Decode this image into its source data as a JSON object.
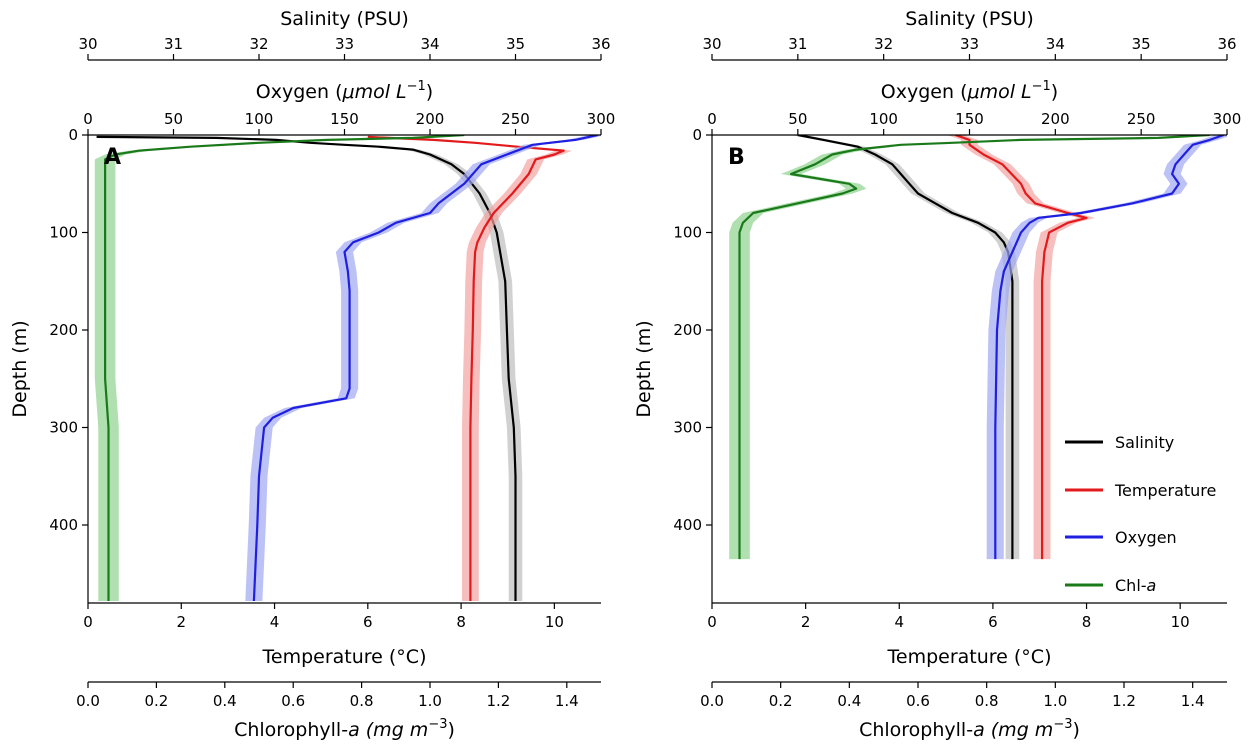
{
  "labels": {
    "salinity": "Salinity (PSU)",
    "oxygen": "Oxygen (",
    "oxygen_unit": "μmol L",
    "oxygen_exp": "−1",
    "depth": "Depth (m)",
    "temperature": "Temperature (°C)",
    "chl": "Chlorophyll-",
    "chl_a": "a",
    "chl_unit": " (mg m",
    "chl_exp": "−3"
  },
  "axes": {
    "salinity_ticks": [
      "30",
      "31",
      "32",
      "33",
      "34",
      "35",
      "36"
    ],
    "oxygen_ticks": [
      "0",
      "50",
      "100",
      "150",
      "200",
      "250",
      "300"
    ],
    "depth_ticks": [
      "0",
      "100",
      "200",
      "300",
      "400"
    ],
    "temperature_ticks": [
      "0",
      "2",
      "4",
      "6",
      "8",
      "10"
    ],
    "chl_ticks": [
      "0.0",
      "0.2",
      "0.4",
      "0.6",
      "0.8",
      "1.0",
      "1.2",
      "1.4"
    ]
  },
  "legend": [
    {
      "label": "Salinity",
      "color": "#000000"
    },
    {
      "label": "Temperature",
      "color": "#e31a1c"
    },
    {
      "label": "Oxygen",
      "color": "#1f1fe0"
    },
    {
      "label": "Chl-",
      "italic": "a",
      "color": "#1a7a1a"
    }
  ],
  "colors": {
    "salinity": "#000000",
    "temperature": "#e31a1c",
    "oxygen": "#1f1fe0",
    "chl": "#1a7a1a",
    "salinity_band": "#bdbdbd",
    "temperature_band": "#f4a3a3",
    "oxygen_band": "#9fa8f2",
    "chl_band": "#8fd18f"
  },
  "chart_data": [
    {
      "type": "line",
      "panel": "A",
      "y_axis": {
        "label": "Depth (m)",
        "range": [
          480,
          0
        ],
        "inverted": true
      },
      "x_axes": {
        "salinity": [
          30,
          36
        ],
        "oxygen": [
          0,
          300
        ],
        "temperature": [
          0,
          11
        ],
        "chlorophyll": [
          0.0,
          1.5
        ]
      },
      "series": [
        {
          "name": "Salinity",
          "axis": "salinity",
          "depth": [
            2,
            3,
            5,
            8,
            10,
            12,
            15,
            20,
            30,
            40,
            60,
            80,
            100,
            150,
            200,
            250,
            300,
            350,
            400,
            478
          ],
          "values": [
            30.1,
            31.5,
            32.2,
            32.6,
            33.0,
            33.4,
            33.8,
            34.0,
            34.25,
            34.4,
            34.58,
            34.7,
            34.78,
            34.88,
            34.9,
            34.92,
            34.98,
            35.0,
            35.0,
            35.0
          ]
        },
        {
          "name": "Temperature",
          "axis": "temperature",
          "depth": [
            2,
            5,
            8,
            12,
            16,
            20,
            25,
            40,
            60,
            80,
            95,
            110,
            120,
            150,
            200,
            250,
            300,
            350,
            400,
            478
          ],
          "values": [
            6.0,
            7.4,
            8.3,
            9.2,
            10.2,
            10.0,
            9.6,
            9.45,
            9.1,
            8.7,
            8.5,
            8.35,
            8.3,
            8.27,
            8.25,
            8.22,
            8.2,
            8.2,
            8.2,
            8.2
          ]
        },
        {
          "name": "Oxygen",
          "axis": "oxygen",
          "depth": [
            0,
            5,
            10,
            20,
            30,
            50,
            70,
            80,
            90,
            100,
            110,
            120,
            140,
            160,
            200,
            260,
            270,
            280,
            290,
            300,
            350,
            400,
            478
          ],
          "values": [
            298,
            285,
            260,
            245,
            230,
            220,
            205,
            200,
            180,
            170,
            155,
            150,
            152,
            153,
            153,
            153,
            151,
            120,
            108,
            103,
            100,
            99,
            97
          ]
        },
        {
          "name": "Chl-a",
          "axis": "chlorophyll",
          "depth": [
            0,
            3,
            5,
            8,
            12,
            16,
            20,
            25,
            30,
            50,
            100,
            150,
            200,
            250,
            300,
            350,
            400,
            478
          ],
          "values": [
            1.1,
            0.95,
            0.7,
            0.5,
            0.3,
            0.15,
            0.08,
            0.05,
            0.05,
            0.05,
            0.05,
            0.05,
            0.05,
            0.05,
            0.06,
            0.06,
            0.06,
            0.06
          ]
        }
      ]
    },
    {
      "type": "line",
      "panel": "B",
      "y_axis": {
        "label": "Depth (m)",
        "range": [
          480,
          0
        ],
        "inverted": true
      },
      "x_axes": {
        "salinity": [
          30,
          36
        ],
        "oxygen": [
          0,
          300
        ],
        "temperature": [
          0,
          11
        ],
        "chlorophyll": [
          0.0,
          1.5
        ]
      },
      "series": [
        {
          "name": "Salinity",
          "axis": "salinity",
          "depth": [
            0,
            5,
            12,
            20,
            30,
            40,
            50,
            60,
            70,
            80,
            90,
            100,
            110,
            120,
            150,
            200,
            300,
            400,
            435
          ],
          "values": [
            31.0,
            31.3,
            31.7,
            31.9,
            32.1,
            32.2,
            32.3,
            32.4,
            32.6,
            32.8,
            33.1,
            33.3,
            33.4,
            33.45,
            33.5,
            33.5,
            33.5,
            33.5,
            33.5
          ]
        },
        {
          "name": "Temperature",
          "axis": "temperature",
          "depth": [
            0,
            5,
            10,
            20,
            30,
            40,
            50,
            60,
            70,
            80,
            85,
            90,
            100,
            110,
            120,
            150,
            200,
            300,
            400,
            435
          ],
          "values": [
            5.2,
            5.5,
            5.5,
            5.8,
            6.2,
            6.4,
            6.6,
            6.7,
            6.9,
            7.6,
            8.0,
            7.6,
            7.2,
            7.15,
            7.1,
            7.05,
            7.05,
            7.05,
            7.05,
            7.05
          ]
        },
        {
          "name": "Oxygen",
          "axis": "oxygen",
          "depth": [
            0,
            5,
            10,
            20,
            30,
            40,
            50,
            60,
            70,
            80,
            85,
            90,
            100,
            120,
            140,
            160,
            200,
            300,
            400,
            435
          ],
          "values": [
            298,
            290,
            280,
            275,
            270,
            268,
            272,
            268,
            245,
            215,
            190,
            185,
            180,
            175,
            170,
            168,
            166,
            165,
            165,
            165
          ]
        },
        {
          "name": "Chl-a",
          "axis": "chlorophyll",
          "depth": [
            0,
            3,
            5,
            8,
            10,
            15,
            20,
            30,
            40,
            50,
            55,
            60,
            70,
            80,
            90,
            100,
            150,
            200,
            300,
            400,
            435
          ],
          "values": [
            1.45,
            1.3,
            0.9,
            0.7,
            0.55,
            0.42,
            0.35,
            0.3,
            0.23,
            0.4,
            0.42,
            0.38,
            0.25,
            0.12,
            0.09,
            0.08,
            0.08,
            0.08,
            0.08,
            0.08,
            0.08
          ]
        }
      ]
    }
  ]
}
